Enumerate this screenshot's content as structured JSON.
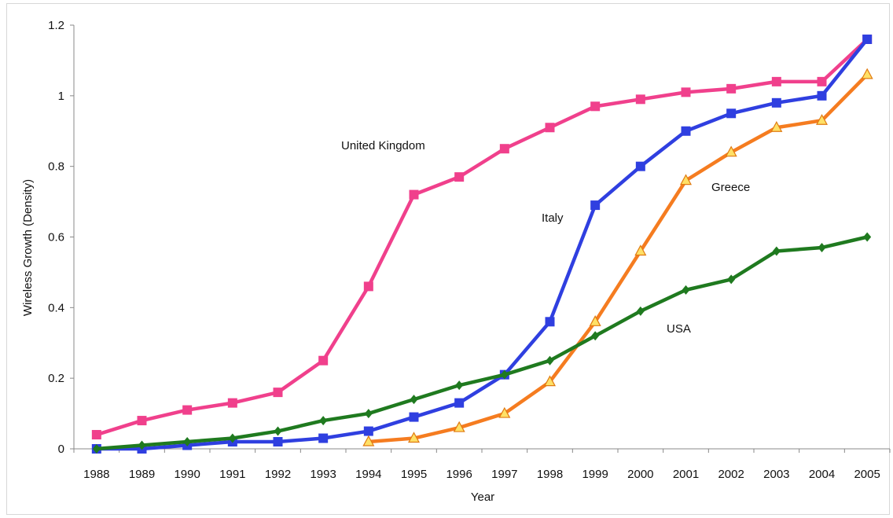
{
  "chart_data": {
    "type": "line",
    "title": "",
    "xlabel": "Year",
    "ylabel": "Wireless Growth (Density)",
    "ylim": [
      0,
      1.2
    ],
    "yticks": [
      "0",
      "0.2",
      "0.4",
      "0.6",
      "0.8",
      "1",
      "1.2"
    ],
    "grid": false,
    "legend": "inline labels",
    "categories": [
      "1988",
      "1989",
      "1990",
      "1991",
      "1992",
      "1993",
      "1994",
      "1995",
      "1996",
      "1997",
      "1998",
      "1999",
      "2000",
      "2001",
      "2002",
      "2003",
      "2004",
      "2005"
    ],
    "series": [
      {
        "name": "United Kingdom",
        "color": "#f0408c",
        "marker": "square",
        "values": [
          0.04,
          0.08,
          0.11,
          0.13,
          0.16,
          0.25,
          0.46,
          0.72,
          0.77,
          0.85,
          0.91,
          0.97,
          0.99,
          1.01,
          1.02,
          1.04,
          1.04,
          1.16
        ]
      },
      {
        "name": "Italy",
        "color": "#2f3fe0",
        "marker": "square",
        "values": [
          0.0,
          0.0,
          0.01,
          0.02,
          0.02,
          0.03,
          0.05,
          0.09,
          0.13,
          0.21,
          0.36,
          0.69,
          0.8,
          0.9,
          0.95,
          0.98,
          1.0,
          1.16
        ]
      },
      {
        "name": "Greece",
        "color": "#f57c20",
        "marker": "triangle",
        "values": [
          null,
          null,
          null,
          null,
          null,
          null,
          0.02,
          0.03,
          0.06,
          0.1,
          0.19,
          0.36,
          0.56,
          0.76,
          0.84,
          0.91,
          0.93,
          1.06
        ]
      },
      {
        "name": "USA",
        "color": "#1f7a1f",
        "marker": "diamond",
        "values": [
          0.0,
          0.01,
          0.02,
          0.03,
          0.05,
          0.08,
          0.1,
          0.14,
          0.18,
          0.21,
          0.25,
          0.32,
          0.39,
          0.45,
          0.48,
          0.56,
          0.57,
          0.6
        ]
      }
    ]
  }
}
